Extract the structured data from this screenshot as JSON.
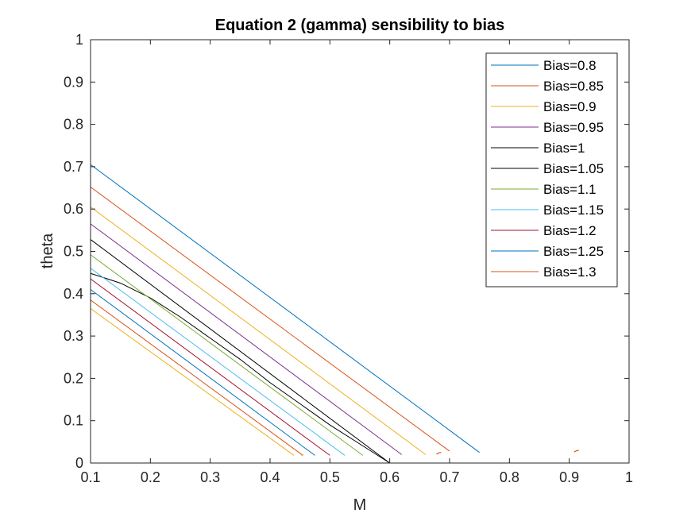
{
  "chart_data": {
    "type": "line",
    "title": "Equation 2 (gamma) sensibility to bias",
    "xlabel": "M",
    "ylabel": "theta",
    "xlim": [
      0.1,
      1
    ],
    "ylim": [
      0,
      1
    ],
    "xticks": [
      "0.1",
      "0.2",
      "0.3",
      "0.4",
      "0.5",
      "0.6",
      "0.7",
      "0.8",
      "0.9",
      "1"
    ],
    "yticks": [
      "0",
      "0.1",
      "0.2",
      "0.3",
      "0.4",
      "0.5",
      "0.6",
      "0.7",
      "0.8",
      "0.9",
      "1"
    ],
    "grid": false,
    "legend_position": "top-right",
    "series": [
      {
        "name": "Bias=0.8",
        "color": "#0072BD",
        "x": [
          0.1,
          0.75
        ],
        "y": [
          0.705,
          0.025
        ]
      },
      {
        "name": "Bias=0.85",
        "color": "#D95319",
        "x": [
          0.1,
          0.7
        ],
        "y": [
          0.652,
          0.028
        ]
      },
      {
        "name": "Bias=0.9",
        "color": "#EDB120",
        "x": [
          0.1,
          0.66
        ],
        "y": [
          0.605,
          0.02
        ]
      },
      {
        "name": "Bias=0.95",
        "color": "#7E2F8E",
        "x": [
          0.1,
          0.62
        ],
        "y": [
          0.565,
          0.02
        ]
      },
      {
        "name": "Bias=1",
        "color": "#000000",
        "x": [
          0.1,
          0.6
        ],
        "y": [
          0.528,
          0.0
        ]
      },
      {
        "name": "Bias=1.05",
        "color": "#000000",
        "x": [
          0.1,
          0.15,
          0.2,
          0.25,
          0.3,
          0.35,
          0.4,
          0.45,
          0.5,
          0.55,
          0.6
        ],
        "y": [
          0.448,
          0.425,
          0.39,
          0.345,
          0.295,
          0.245,
          0.19,
          0.14,
          0.09,
          0.045,
          0.0
        ]
      },
      {
        "name": "Bias=1.1",
        "color": "#77AC30",
        "x": [
          0.1,
          0.555
        ],
        "y": [
          0.492,
          0.018
        ]
      },
      {
        "name": "Bias=1.15",
        "color": "#4DBEEE",
        "x": [
          0.1,
          0.525
        ],
        "y": [
          0.46,
          0.018
        ]
      },
      {
        "name": "Bias=1.2",
        "color": "#A2142F",
        "x": [
          0.1,
          0.5
        ],
        "y": [
          0.435,
          0.018
        ]
      },
      {
        "name": "Bias=1.25",
        "color": "#0072BD",
        "x": [
          0.1,
          0.475
        ],
        "y": [
          0.41,
          0.018
        ]
      },
      {
        "name": "Bias=1.3",
        "color": "#D95319",
        "x": [
          0.1,
          0.455
        ],
        "y": [
          0.385,
          0.018
        ]
      },
      {
        "name": "",
        "color": "#EDB120",
        "x": [
          0.1,
          0.44
        ],
        "y": [
          0.365,
          0.018
        ]
      }
    ],
    "extra_marks": [
      {
        "color": "#D95319",
        "x": [
          0.678,
          0.682,
          0.686
        ],
        "y": [
          0.021,
          0.024,
          0.025
        ]
      },
      {
        "color": "#D95319",
        "x": [
          0.908,
          0.912,
          0.916
        ],
        "y": [
          0.026,
          0.029,
          0.03
        ]
      },
      {
        "color": "#EDB120",
        "x": [
          0.452,
          0.456
        ],
        "y": [
          0.018,
          0.02
        ]
      }
    ]
  }
}
